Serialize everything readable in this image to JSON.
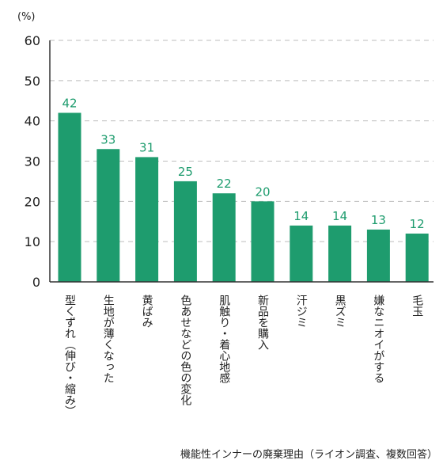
{
  "chart_data": {
    "type": "bar",
    "unit_label": "(%)",
    "categories": [
      "型くずれ（伸び・縮み）",
      "生地が薄くなった",
      "黄ばみ",
      "色あせなどの色の変化",
      "肌触り・着心地感",
      "新品を購入",
      "汗ジミ",
      "黒ズミ",
      "嫌なニオイがする",
      "毛玉"
    ],
    "values": [
      42,
      33,
      31,
      25,
      22,
      20,
      14,
      14,
      13,
      12
    ],
    "ylim": [
      0,
      60
    ],
    "yticks": [
      0,
      10,
      20,
      30,
      40,
      50,
      60
    ],
    "grid": true,
    "colors": {
      "bar": "#1e9c6e",
      "label": "#1e9c6e",
      "grid": "#bdbdbd",
      "axis": "#333333"
    },
    "caption": "機能性インナーの廃棄理由（ライオン調査、複数回答）"
  }
}
